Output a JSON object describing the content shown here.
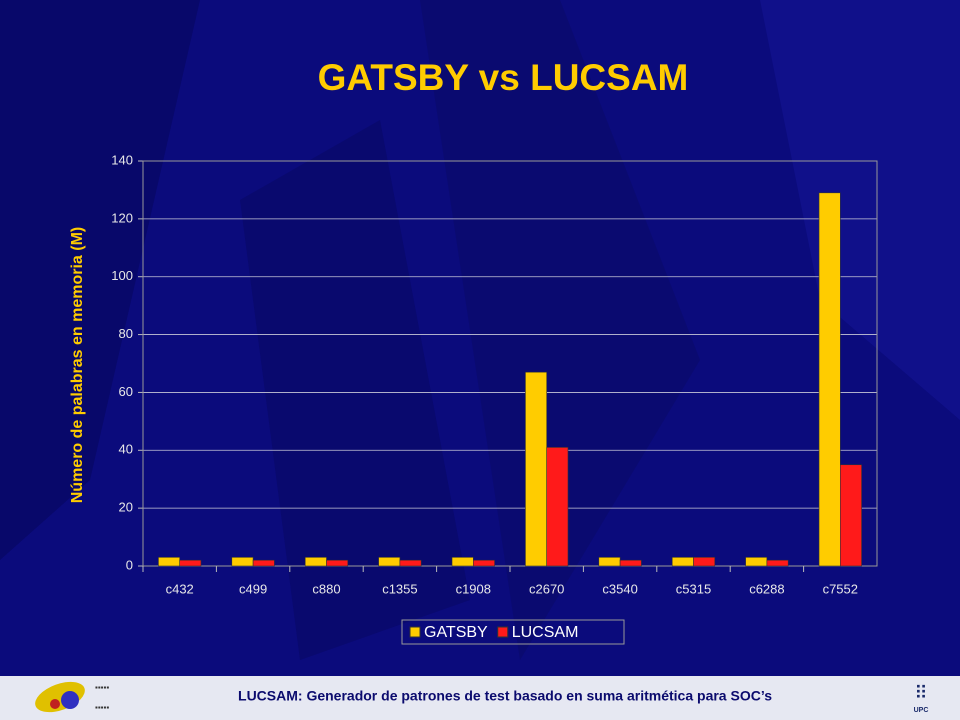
{
  "chart_data": {
    "type": "bar",
    "title": "GATSBY vs LUCSAM",
    "y_label": "Número de palabras en memoria (M)",
    "categories": [
      "c432",
      "c499",
      "c880",
      "c1355",
      "c1908",
      "c2670",
      "c3540",
      "c5315",
      "c6288",
      "c7552"
    ],
    "series": [
      {
        "name": "GATSBY",
        "color": "#ffcc00",
        "values": [
          3,
          3,
          3,
          3,
          3,
          67,
          3,
          3,
          3,
          129
        ]
      },
      {
        "name": "LUCSAM",
        "color": "#ff1a1a",
        "values": [
          2,
          2,
          2,
          2,
          2,
          41,
          2,
          3,
          2,
          35
        ]
      }
    ],
    "ylim": [
      0,
      140
    ],
    "yticks": [
      0,
      20,
      40,
      60,
      80,
      100,
      120,
      140
    ],
    "grid": true,
    "legend": "bottom"
  },
  "footer": {
    "text": "LUCSAM: Generador de patrones de test basado en suma aritmética para SOC’s"
  }
}
